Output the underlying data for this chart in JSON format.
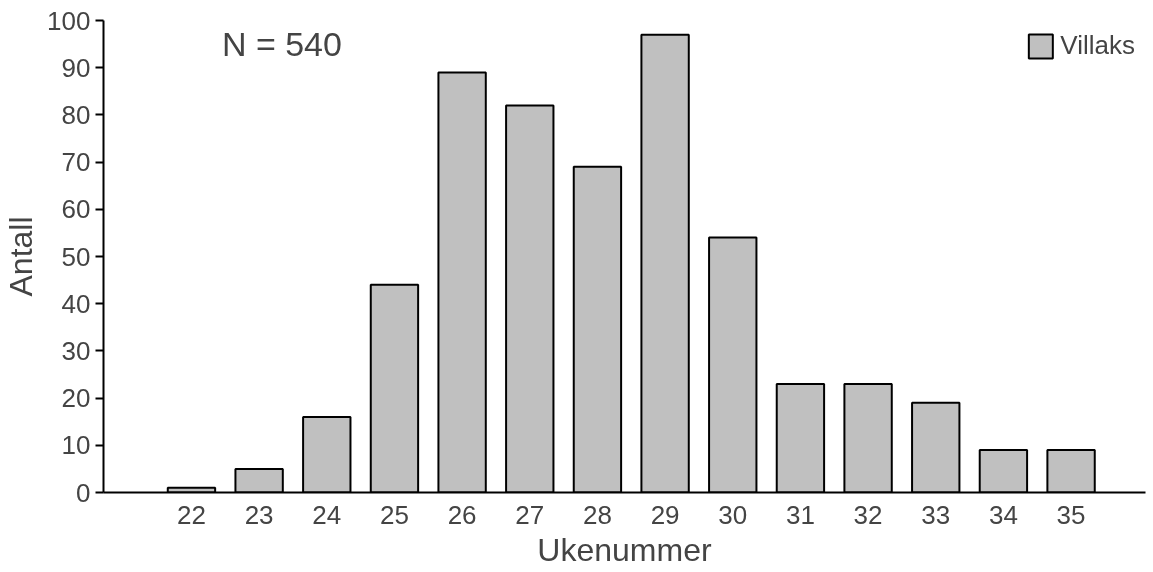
{
  "chart_data": {
    "type": "bar",
    "xlabel": "Ukenummer",
    "ylabel": "Antall",
    "categories": [
      "22",
      "23",
      "24",
      "25",
      "26",
      "27",
      "28",
      "29",
      "30",
      "31",
      "32",
      "33",
      "34",
      "35"
    ],
    "series": [
      {
        "name": "Villaks",
        "color": "#c0c0c0",
        "values": [
          1,
          5,
          16,
          44,
          89,
          82,
          69,
          97,
          54,
          23,
          23,
          19,
          9,
          9
        ]
      }
    ],
    "ylim": [
      0,
      100
    ],
    "yticks": [
      0,
      10,
      20,
      30,
      40,
      50,
      60,
      70,
      80,
      90,
      100
    ],
    "annotations": [
      "N = 540"
    ],
    "legend": "top right",
    "grid": false
  }
}
